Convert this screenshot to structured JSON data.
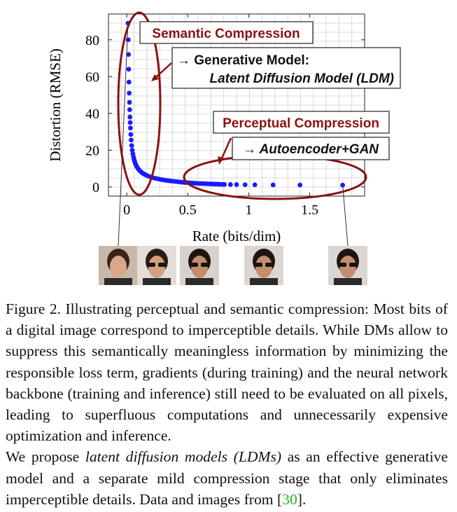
{
  "chart_data": {
    "type": "scatter",
    "xlabel": "Rate (bits/dim)",
    "ylabel": "Distortion (RMSE)",
    "xlim": [
      -0.15,
      1.95
    ],
    "ylim": [
      -5,
      94
    ],
    "xticks": [
      0,
      0.5,
      1,
      1.5
    ],
    "xtick_labels": [
      "0",
      "0.5",
      "1",
      "1.5"
    ],
    "yticks": [
      0,
      20,
      40,
      60,
      80
    ],
    "ytick_labels": [
      "0",
      "20",
      "40",
      "60",
      "80"
    ],
    "grid": true,
    "series": [
      {
        "color": "#1a1aff",
        "x": [
          0.01,
          0.012,
          0.014,
          0.016,
          0.018,
          0.02,
          0.022,
          0.024,
          0.026,
          0.028,
          0.03,
          0.033,
          0.036,
          0.04,
          0.045,
          0.05,
          0.055,
          0.06,
          0.065,
          0.07,
          0.075,
          0.08,
          0.09,
          0.1,
          0.11,
          0.12,
          0.13,
          0.14,
          0.15,
          0.16,
          0.18,
          0.2,
          0.22,
          0.24,
          0.26,
          0.28,
          0.3,
          0.32,
          0.34,
          0.36,
          0.38,
          0.4,
          0.42,
          0.44,
          0.46,
          0.48,
          0.5,
          0.52,
          0.54,
          0.56,
          0.58,
          0.6,
          0.62,
          0.64,
          0.66,
          0.68,
          0.7,
          0.72,
          0.74,
          0.76,
          0.78,
          0.8,
          0.85,
          0.9,
          0.97,
          1.05,
          1.2,
          1.42,
          1.77
        ],
        "y": [
          89,
          80,
          72,
          64,
          57,
          51,
          46,
          42,
          38,
          35,
          32,
          28.5,
          25.5,
          22.5,
          20,
          18,
          16.3,
          15,
          13.8,
          12.8,
          12,
          11.3,
          10.2,
          9.3,
          8.6,
          8,
          7.5,
          7.1,
          6.7,
          6.4,
          5.8,
          5.3,
          4.9,
          4.6,
          4.3,
          4.05,
          3.8,
          3.6,
          3.4,
          3.25,
          3.1,
          2.95,
          2.8,
          2.65,
          2.5,
          2.4,
          2.3,
          2.2,
          2.1,
          2.0,
          1.9,
          1.85,
          1.8,
          1.75,
          1.7,
          1.65,
          1.6,
          1.55,
          1.5,
          1.45,
          1.4,
          1.35,
          1.3,
          1.25,
          1.2,
          1.15,
          1.1,
          1.05,
          1.0
        ]
      }
    ],
    "annotations": {
      "semantic_title": "Semantic Compression",
      "semantic_line1": "→ Generative Model:",
      "semantic_line2": "Latent Diffusion Model (LDM)",
      "perceptual_title": "Perceptual Compression",
      "perceptual_line1": "→ Autoencoder+GAN",
      "accent_color": "#8b1010"
    }
  },
  "caption": {
    "paragraph1": "Figure 2.  Illustrating perceptual and semantic compression: Most bits of a digital image correspond to imperceptible details. While DMs allow to suppress this semantically meaningless information by minimizing the responsible loss term, gradients (during training) and the neural network backbone (training and inference) still need to be evaluated on all pixels, leading to superfluous computations and unnecessarily expensive optimization and inference.",
    "p2_before": "We propose ",
    "p2_italic": "latent diffusion models (LDMs)",
    "p2_after": " as an effective generative model and a separate mild compression stage that only eliminates imperceptible details. Data and images from ",
    "cite_open": "[",
    "cite_num": "30",
    "cite_close": "].",
    "cite_color": "#21b321"
  },
  "thumbnails": [
    {
      "name": "face-thumb-1",
      "x": 0.0
    },
    {
      "name": "face-thumb-2",
      "x": 0.15
    },
    {
      "name": "face-thumb-3",
      "x": 0.5
    },
    {
      "name": "face-thumb-4",
      "x": 1.0
    },
    {
      "name": "face-thumb-5",
      "x": 1.77
    }
  ]
}
